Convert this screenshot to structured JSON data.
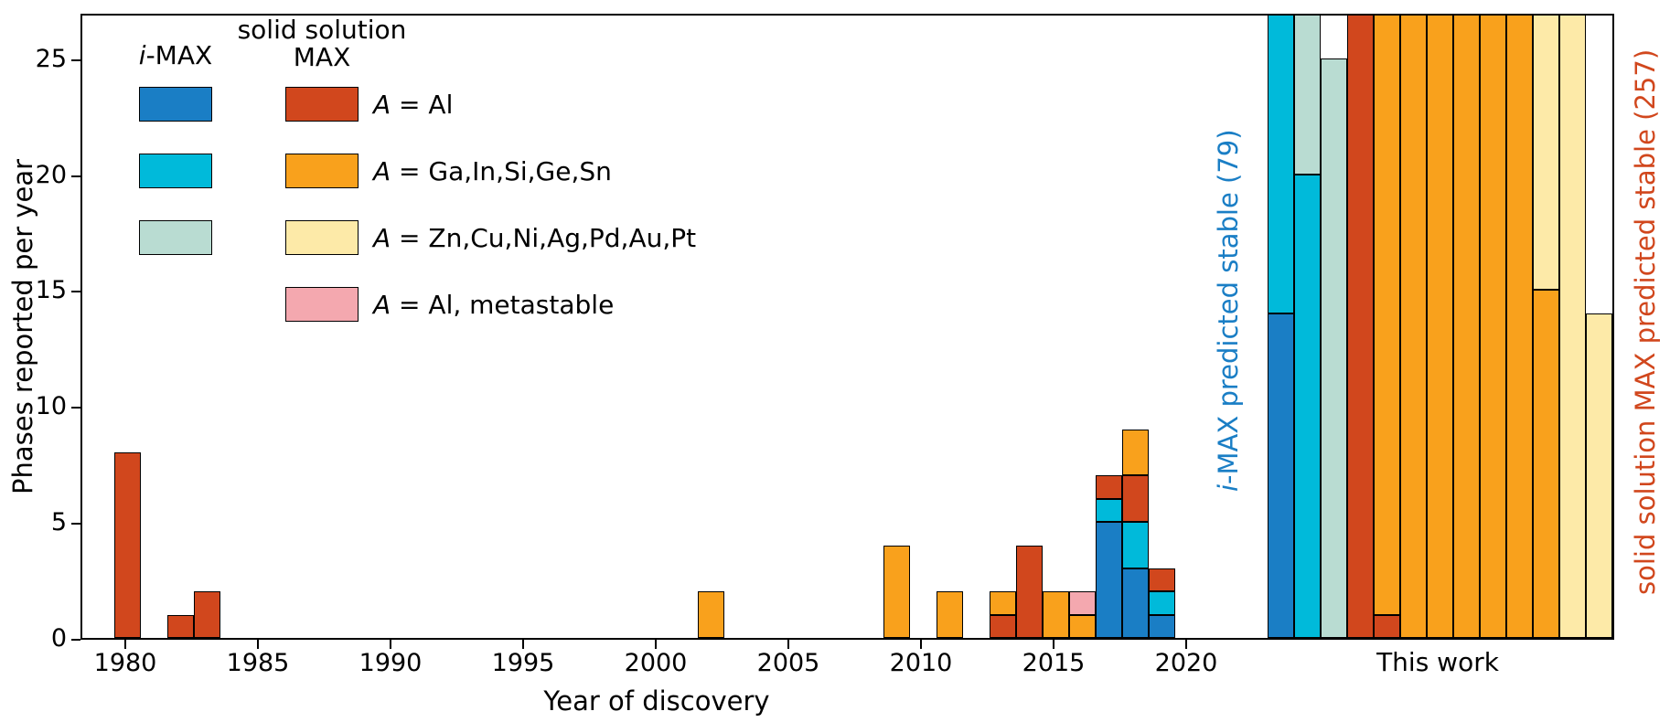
{
  "figure": {
    "ylabel": "Phases reported per year",
    "xlabel": "Year of discovery",
    "this_work_label": "This work",
    "imax_annotation": {
      "italic": "i",
      "rest": "-MAX predicted stable (79)",
      "color": "#1a7ec5"
    },
    "ss_annotation": {
      "text": "solid solution MAX predicted stable (257)",
      "color": "#d1471d"
    }
  },
  "legend": {
    "imax_header": {
      "italic": "i",
      "rest": "-MAX"
    },
    "ss_header_line1": "solid solution",
    "ss_header_line2": "MAX",
    "entries": [
      {
        "imax_color": "blue",
        "ss_color": "red",
        "label_prefix": "A",
        "label_rest": " = Al"
      },
      {
        "imax_color": "cyan",
        "ss_color": "orange",
        "label_prefix": "A",
        "label_rest": " = Ga,In,Si,Ge,Sn"
      },
      {
        "imax_color": "teal",
        "ss_color": "yellow",
        "label_prefix": "A",
        "label_rest": " = Zn,Cu,Ni,Ag,Pd,Au,Pt"
      },
      {
        "imax_color": null,
        "ss_color": "pink",
        "label_prefix": "A",
        "label_rest": " = Al, metastable"
      }
    ]
  },
  "chart_data": {
    "type": "bar",
    "stacked": true,
    "title": "",
    "xlabel": "Year of discovery",
    "ylabel": "Phases reported per year",
    "ylim": [
      0,
      27
    ],
    "yticks": [
      0,
      5,
      10,
      15,
      20,
      25
    ],
    "xticks": [
      1980,
      1985,
      1990,
      1995,
      2000,
      2005,
      2010,
      2015,
      2020
    ],
    "grid": false,
    "legend_position": "upper-left",
    "colors": {
      "blue": "#1a7ec5",
      "cyan": "#00bada",
      "teal": "#b9dcd2",
      "red": "#d1471d",
      "orange": "#f9a11c",
      "yellow": "#fdeaa8",
      "pink": "#f4a8af"
    },
    "color_meaning": {
      "blue": "i-MAX",
      "cyan": "i-MAX",
      "teal": "i-MAX",
      "red": "solid solution MAX, A = Al",
      "orange": "solid solution MAX, A = Ga,In,Si,Ge,Sn",
      "yellow": "solid solution MAX, A = Zn,Cu,Ni,Ag,Pd,Au,Pt",
      "pink": "solid solution MAX, A = Al, metastable"
    },
    "bars_by_year": [
      {
        "year": 1980,
        "segments": [
          {
            "color": "red",
            "value": 8
          }
        ]
      },
      {
        "year": 1982,
        "segments": [
          {
            "color": "red",
            "value": 1
          }
        ]
      },
      {
        "year": 1983,
        "segments": [
          {
            "color": "red",
            "value": 2
          }
        ]
      },
      {
        "year": 2002,
        "segments": [
          {
            "color": "orange",
            "value": 2
          }
        ]
      },
      {
        "year": 2009,
        "segments": [
          {
            "color": "orange",
            "value": 4
          }
        ]
      },
      {
        "year": 2011,
        "segments": [
          {
            "color": "orange",
            "value": 2
          }
        ]
      },
      {
        "year": 2013,
        "segments": [
          {
            "color": "red",
            "value": 1
          },
          {
            "color": "orange",
            "value": 1
          }
        ]
      },
      {
        "year": 2014,
        "segments": [
          {
            "color": "red",
            "value": 4
          }
        ]
      },
      {
        "year": 2015,
        "segments": [
          {
            "color": "orange",
            "value": 2
          }
        ]
      },
      {
        "year": 2016,
        "segments": [
          {
            "color": "orange",
            "value": 1
          },
          {
            "color": "pink",
            "value": 1
          }
        ]
      },
      {
        "year": 2017,
        "segments": [
          {
            "color": "blue",
            "value": 5
          },
          {
            "color": "cyan",
            "value": 1
          },
          {
            "color": "red",
            "value": 1
          }
        ]
      },
      {
        "year": 2018,
        "segments": [
          {
            "color": "blue",
            "value": 3
          },
          {
            "color": "cyan",
            "value": 2
          },
          {
            "color": "red",
            "value": 2
          },
          {
            "color": "orange",
            "value": 2
          }
        ]
      },
      {
        "year": 2019,
        "segments": [
          {
            "color": "blue",
            "value": 1
          },
          {
            "color": "cyan",
            "value": 1
          },
          {
            "color": "red",
            "value": 1
          }
        ]
      }
    ],
    "this_work_bars": [
      {
        "segments": [
          {
            "color": "blue",
            "value": 14
          },
          {
            "color": "cyan",
            "value": 13
          }
        ]
      },
      {
        "segments": [
          {
            "color": "cyan",
            "value": 20
          },
          {
            "color": "teal",
            "value": 7
          }
        ]
      },
      {
        "segments": [
          {
            "color": "teal",
            "value": 25
          }
        ]
      },
      {
        "segments": [
          {
            "color": "red",
            "value": 27
          }
        ]
      },
      {
        "segments": [
          {
            "color": "red",
            "value": 1
          },
          {
            "color": "orange",
            "value": 26
          }
        ]
      },
      {
        "segments": [
          {
            "color": "orange",
            "value": 27
          }
        ]
      },
      {
        "segments": [
          {
            "color": "orange",
            "value": 27
          }
        ]
      },
      {
        "segments": [
          {
            "color": "orange",
            "value": 27
          }
        ]
      },
      {
        "segments": [
          {
            "color": "orange",
            "value": 27
          }
        ]
      },
      {
        "segments": [
          {
            "color": "orange",
            "value": 27
          }
        ]
      },
      {
        "segments": [
          {
            "color": "orange",
            "value": 15
          },
          {
            "color": "yellow",
            "value": 12
          }
        ]
      },
      {
        "segments": [
          {
            "color": "yellow",
            "value": 27
          }
        ]
      },
      {
        "segments": [
          {
            "color": "yellow",
            "value": 14
          }
        ]
      }
    ],
    "totals": {
      "i_max_predicted_stable": 79,
      "solid_solution_max_predicted_stable": 257
    }
  }
}
